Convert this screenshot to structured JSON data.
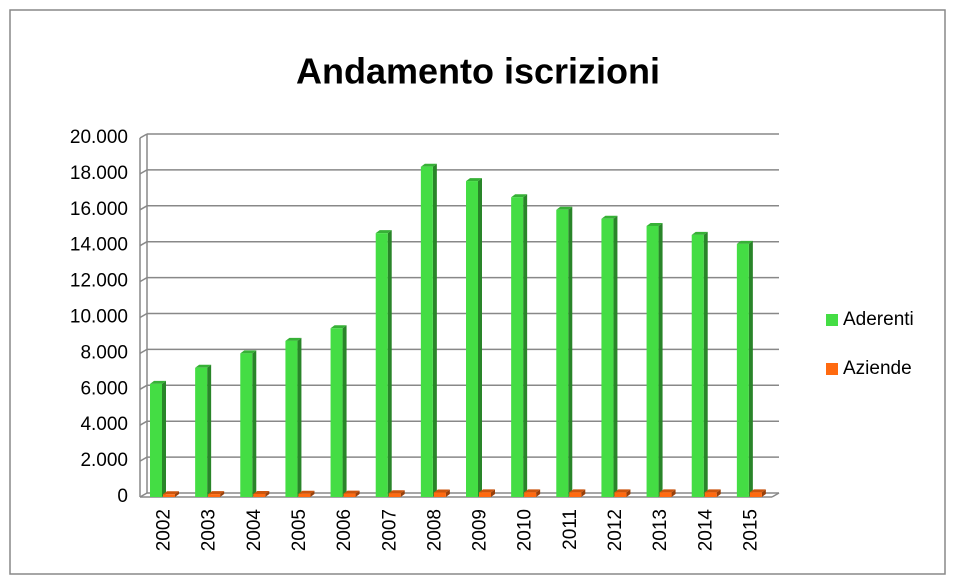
{
  "chart_data": {
    "type": "bar3d",
    "title": "Andamento iscrizioni",
    "categories": [
      "2002",
      "2003",
      "2004",
      "2005",
      "2006",
      "2007",
      "2008",
      "2009",
      "2010",
      "2011",
      "2012",
      "2013",
      "2014",
      "2015"
    ],
    "series": [
      {
        "name": "Aderenti",
        "color": "#44dd44",
        "values": [
          6300,
          7200,
          8000,
          8700,
          9400,
          14700,
          18400,
          17600,
          16700,
          16000,
          15500,
          15100,
          14600,
          14100
        ]
      },
      {
        "name": "Aziende",
        "color": "#ff6a10",
        "values": [
          150,
          160,
          170,
          180,
          190,
          210,
          250,
          260,
          260,
          260,
          260,
          260,
          260,
          260
        ]
      }
    ],
    "ylim": [
      0,
      20000
    ],
    "yticks": [
      0,
      {
        "value": 2000,
        "label": "2.000"
      },
      {
        "value": 4000,
        "label": "4.000"
      },
      {
        "value": 6000,
        "label": "6.000"
      },
      {
        "value": 8000,
        "label": "8.000"
      },
      {
        "value": 10000,
        "label": "10.000"
      },
      {
        "value": 12000,
        "label": "12.000"
      },
      {
        "value": 14000,
        "label": "14.000"
      },
      {
        "value": 16000,
        "label": "16.000"
      },
      {
        "value": 18000,
        "label": "18.000"
      },
      {
        "value": 20000,
        "label": "20.000"
      }
    ],
    "grid": true,
    "legend": "right"
  }
}
